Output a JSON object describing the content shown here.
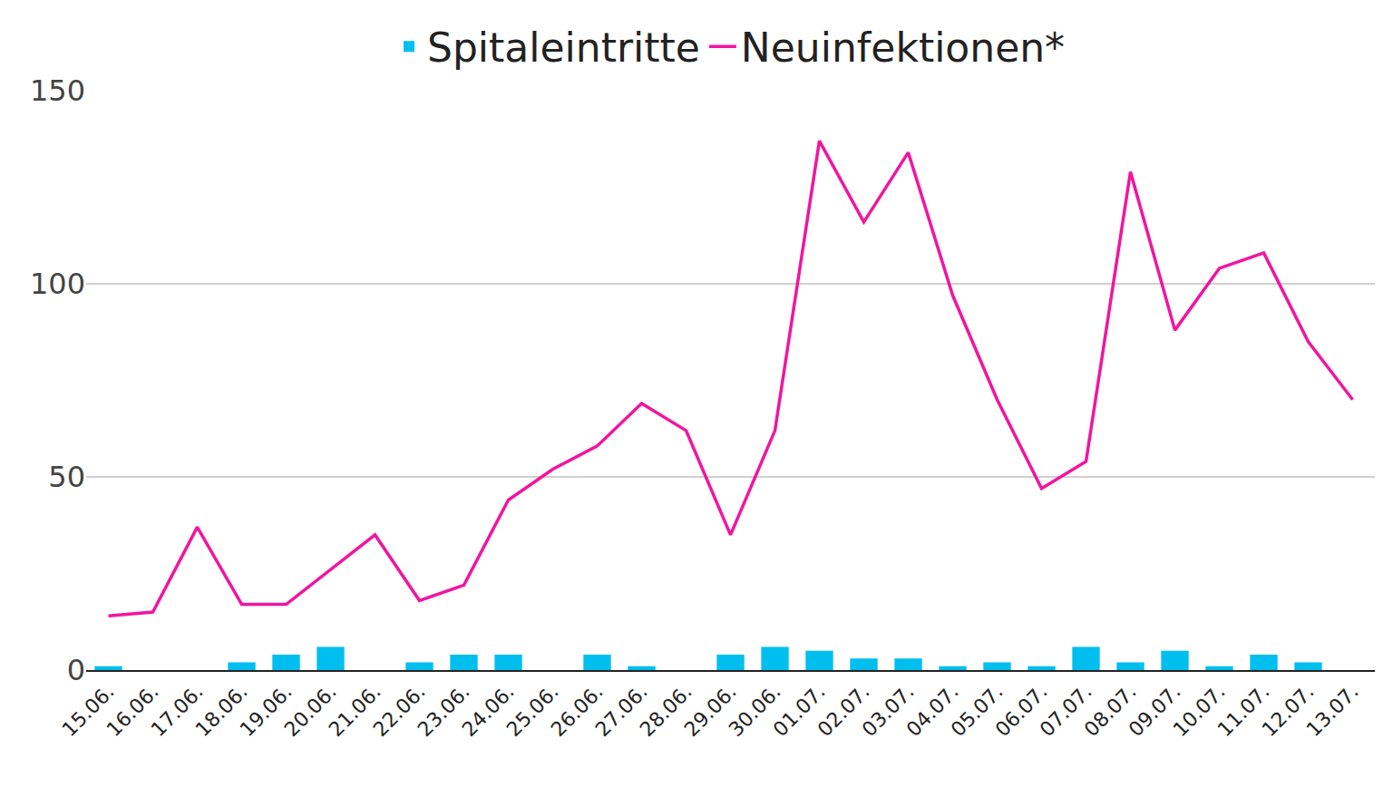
{
  "chart_data": {
    "type": "bar",
    "categories": [
      "15.06.",
      "16.06.",
      "17.06.",
      "18.06.",
      "19.06.",
      "20.06.",
      "21.06.",
      "22.06.",
      "23.06.",
      "24.06.",
      "25.06.",
      "26.06.",
      "27.06.",
      "28.06.",
      "29.06.",
      "30.06.",
      "01.07.",
      "02.07.",
      "03.07.",
      "04.07.",
      "05.07.",
      "06.07.",
      "07.07.",
      "08.07.",
      "09.07.",
      "10.07.",
      "11.07.",
      "12.07.",
      "13.07."
    ],
    "series": [
      {
        "name": "Spitaleintritte",
        "type": "bar",
        "color": "#00bfef",
        "values": [
          1,
          0,
          0,
          2,
          4,
          6,
          0,
          2,
          4,
          4,
          0,
          4,
          1,
          0,
          4,
          6,
          5,
          3,
          3,
          1,
          2,
          1,
          6,
          2,
          5,
          1,
          4,
          2,
          0
        ]
      },
      {
        "name": "Neuinfektionen*",
        "type": "line",
        "color": "#f0169f",
        "values": [
          14,
          15,
          37,
          17,
          17,
          26,
          35,
          18,
          22,
          44,
          52,
          58,
          69,
          62,
          35,
          62,
          137,
          116,
          134,
          97,
          70,
          47,
          54,
          129,
          88,
          104,
          108,
          85,
          70
        ]
      }
    ],
    "ylim": [
      0,
      150
    ],
    "yticks": [
      0,
      50,
      100,
      150
    ],
    "grid": true,
    "legend": "top"
  }
}
